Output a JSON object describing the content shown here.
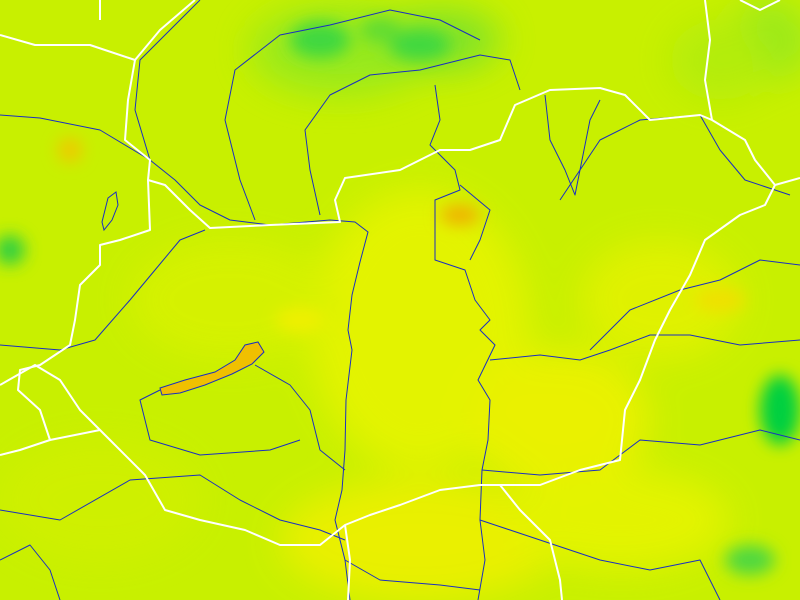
{
  "map": {
    "type": "raster field map with vector overlays",
    "colors": {
      "base": "#c8f000",
      "high": "#f0f000",
      "highest": "#f0b000",
      "low": "#00d040",
      "borders": "#ffffff",
      "rivers_lakes": "#1a2fc0"
    },
    "layers": [
      "raster-field",
      "national-borders",
      "rivers",
      "lakes"
    ]
  }
}
